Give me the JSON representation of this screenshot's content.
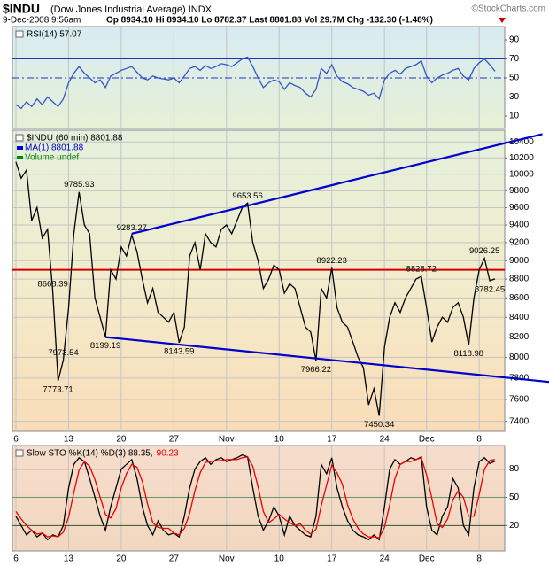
{
  "header": {
    "symbol": "$INDU",
    "name": "(Dow Jones Industrial Average) INDX",
    "date": "9-Dec-2008 9:56am",
    "quote": "Op 8934.10 Hi 8934.10 Lo 8782.37 Last 8801.88 Vol 29.7M Chg -132.30 (-1.48%)",
    "credit": "©StockCharts.com"
  },
  "chart_data": [
    {
      "type": "line",
      "ylim": [
        -3,
        104
      ],
      "yticks": [
        10,
        30,
        50,
        70,
        90
      ],
      "grid": false,
      "levels": [
        {
          "value": 70,
          "color": "#2233bb",
          "style": "solid"
        },
        {
          "value": 50,
          "color": "#2233bb",
          "style": "dashdot"
        },
        {
          "value": 30,
          "color": "#2233bb",
          "style": "solid"
        }
      ],
      "series": [
        {
          "name": "RSI(14) 57.07",
          "color": "#3355cc",
          "values": [
            22,
            18,
            25,
            20,
            28,
            22,
            30,
            25,
            20,
            28,
            45,
            55,
            62,
            55,
            50,
            45,
            48,
            40,
            52,
            55,
            58,
            60,
            62,
            56,
            50,
            48,
            52,
            50,
            49,
            48,
            50,
            45,
            52,
            60,
            62,
            58,
            63,
            60,
            62,
            65,
            64,
            62,
            66,
            70,
            72,
            62,
            50,
            40,
            45,
            48,
            46,
            38,
            45,
            42,
            40,
            34,
            30,
            38,
            60,
            55,
            64,
            52,
            46,
            44,
            40,
            38,
            36,
            32,
            34,
            28,
            48,
            55,
            58,
            54,
            60,
            62,
            64,
            68,
            52,
            45,
            50,
            53,
            55,
            58,
            60,
            52,
            48,
            60,
            66,
            70,
            64,
            57.07
          ]
        }
      ]
    },
    {
      "type": "line",
      "log_scale": true,
      "ylim": [
        7310,
        10550
      ],
      "yticks": [
        7400,
        7600,
        7800,
        8000,
        8200,
        8400,
        8600,
        8800,
        9000,
        9200,
        9400,
        9600,
        9800,
        10000,
        10200,
        10400
      ],
      "grid": true,
      "categories": [
        "6",
        null,
        null,
        null,
        null,
        null,
        null,
        null,
        null,
        null,
        "13",
        null,
        null,
        null,
        null,
        null,
        null,
        null,
        null,
        null,
        "20",
        null,
        null,
        null,
        null,
        null,
        null,
        null,
        null,
        null,
        "27",
        null,
        null,
        null,
        null,
        null,
        null,
        null,
        null,
        null,
        "Nov",
        null,
        null,
        null,
        null,
        null,
        null,
        null,
        null,
        null,
        "10",
        null,
        null,
        null,
        null,
        null,
        null,
        null,
        null,
        null,
        "17",
        null,
        null,
        null,
        null,
        null,
        null,
        null,
        null,
        null,
        "24",
        null,
        null,
        null,
        null,
        null,
        null,
        null,
        "Dec",
        null,
        null,
        null,
        null,
        null,
        null,
        null,
        null,
        null,
        "8",
        null,
        null,
        null
      ],
      "series": [
        {
          "name": "$INDU (60 min) 8801.88",
          "color": "#000000",
          "values": [
            10150,
            9950,
            10050,
            9450,
            9600,
            9250,
            9350,
            8668.39,
            7773.71,
            7973.54,
            8500,
            9300,
            9785.93,
            9400,
            9300,
            8600,
            8400,
            8199.19,
            8900,
            8800,
            9150,
            9050,
            9283.27,
            9100,
            8800,
            8550,
            8700,
            8450,
            8400,
            8350,
            8450,
            8143.59,
            8300,
            9050,
            9200,
            8900,
            9300,
            9200,
            9150,
            9350,
            9400,
            9300,
            9450,
            9600,
            9653.56,
            9200,
            9000,
            8700,
            8800,
            8950,
            8900,
            8650,
            8750,
            8700,
            8500,
            8300,
            8250,
            7966.22,
            8700,
            8600,
            8922.23,
            8500,
            8350,
            8300,
            8150,
            8000,
            7900,
            7550,
            7700,
            7450.34,
            8100,
            8400,
            8550,
            8450,
            8600,
            8700,
            8800,
            8828.72,
            8500,
            8150,
            8300,
            8400,
            8350,
            8500,
            8550,
            8400,
            8118.98,
            8600,
            8900,
            9026.25,
            8782.45,
            8801.88
          ],
          "value_labels": [
            null,
            null,
            null,
            null,
            null,
            null,
            null,
            "8668.39",
            "7773.71",
            "7973.54",
            null,
            null,
            "9785.93",
            null,
            null,
            null,
            null,
            "8199.19",
            null,
            null,
            null,
            null,
            "9283.27",
            null,
            null,
            null,
            null,
            null,
            null,
            null,
            null,
            "8143.59",
            null,
            null,
            null,
            null,
            null,
            null,
            null,
            null,
            null,
            null,
            null,
            null,
            "9653.56",
            null,
            null,
            null,
            null,
            null,
            null,
            null,
            null,
            null,
            null,
            null,
            null,
            "7966.22",
            null,
            null,
            "8922.23",
            null,
            null,
            null,
            null,
            null,
            null,
            null,
            null,
            "7450.34",
            null,
            null,
            null,
            null,
            null,
            null,
            null,
            "8828.72",
            null,
            null,
            null,
            null,
            null,
            null,
            null,
            null,
            "8118.98",
            null,
            null,
            "9026.25",
            "8782.45",
            null
          ]
        }
      ],
      "legend_notes": [
        {
          "text": "MA(1) 8801.88",
          "color": "#0000cc"
        },
        {
          "text": "Volume undef",
          "color": "#008800"
        }
      ],
      "hlines": [
        {
          "value": 8900,
          "color": "#cc0000"
        }
      ],
      "trendlines": [
        {
          "color": "#0000cc",
          "points": [
            [
              22,
              9300
            ],
            [
              100,
              10500
            ]
          ]
        },
        {
          "color": "#0000cc",
          "points": [
            [
              17,
              8199
            ],
            [
              102,
              7760
            ]
          ]
        }
      ]
    },
    {
      "type": "line",
      "ylim": [
        -7,
        105
      ],
      "yticks": [
        20,
        50,
        80
      ],
      "grid": false,
      "categories": [
        "6",
        null,
        null,
        null,
        null,
        null,
        null,
        null,
        null,
        null,
        "13",
        null,
        null,
        null,
        null,
        null,
        null,
        null,
        null,
        null,
        "20",
        null,
        null,
        null,
        null,
        null,
        null,
        null,
        null,
        null,
        "27",
        null,
        null,
        null,
        null,
        null,
        null,
        null,
        null,
        null,
        "Nov",
        null,
        null,
        null,
        null,
        null,
        null,
        null,
        null,
        null,
        "10",
        null,
        null,
        null,
        null,
        null,
        null,
        null,
        null,
        null,
        "17",
        null,
        null,
        null,
        null,
        null,
        null,
        null,
        null,
        null,
        "24",
        null,
        null,
        null,
        null,
        null,
        null,
        null,
        "Dec",
        null,
        null,
        null,
        null,
        null,
        null,
        null,
        null,
        null,
        "8",
        null,
        null,
        null
      ],
      "levels": [
        {
          "value": 80,
          "color": "#335533",
          "style": "solid"
        },
        {
          "value": 50,
          "color": "#669966",
          "style": "solid"
        },
        {
          "value": 20,
          "color": "#335533",
          "style": "solid"
        }
      ],
      "series": [
        {
          "name": "Slow STO %K(14) %D(3) 88.35,",
          "color": "#000000",
          "values": [
            30,
            20,
            10,
            15,
            8,
            12,
            5,
            10,
            8,
            20,
            60,
            85,
            92,
            88,
            70,
            50,
            30,
            15,
            40,
            60,
            80,
            85,
            90,
            70,
            40,
            20,
            10,
            25,
            15,
            10,
            12,
            8,
            30,
            60,
            80,
            88,
            92,
            85,
            90,
            92,
            88,
            90,
            92,
            95,
            93,
            60,
            30,
            15,
            25,
            40,
            30,
            10,
            30,
            20,
            15,
            10,
            8,
            30,
            85,
            75,
            92,
            60,
            40,
            25,
            15,
            10,
            8,
            5,
            10,
            5,
            40,
            80,
            90,
            85,
            88,
            92,
            90,
            93,
            40,
            15,
            10,
            30,
            40,
            70,
            60,
            20,
            10,
            60,
            88,
            92,
            86,
            88.35
          ]
        },
        {
          "name": "90.23",
          "color": "#ee0000",
          "values": [
            35,
            27,
            20,
            15,
            11,
            12,
            8,
            9,
            8,
            13,
            29,
            55,
            79,
            88,
            83,
            69,
            50,
            32,
            28,
            38,
            60,
            75,
            85,
            82,
            67,
            43,
            23,
            18,
            17,
            17,
            12,
            10,
            17,
            33,
            57,
            76,
            87,
            88,
            89,
            89,
            90,
            90,
            90,
            92,
            93,
            83,
            61,
            35,
            23,
            27,
            32,
            27,
            23,
            20,
            22,
            15,
            11,
            16,
            41,
            63,
            84,
            76,
            64,
            42,
            27,
            17,
            11,
            8,
            8,
            7,
            18,
            42,
            70,
            85,
            88,
            88,
            90,
            92,
            74,
            49,
            22,
            18,
            27,
            47,
            57,
            50,
            30,
            30,
            53,
            80,
            89,
            90.23
          ]
        }
      ]
    }
  ]
}
